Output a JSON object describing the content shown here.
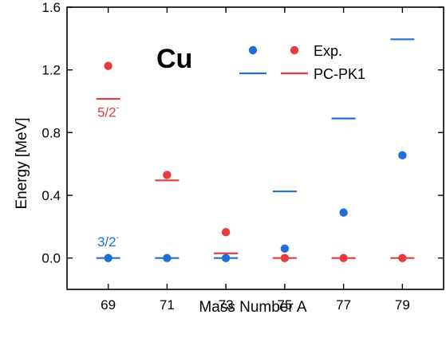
{
  "chart_data": {
    "type": "scatter",
    "annotation_title": "Cu",
    "xlabel": "Mass Number A",
    "ylabel": "Energy [MeV]",
    "xlim": [
      67.6,
      80.4
    ],
    "ylim": [
      -0.2,
      1.6
    ],
    "xticks": [
      69,
      71,
      73,
      75,
      77,
      79
    ],
    "yticks": [
      0.0,
      0.4,
      0.8,
      1.2,
      1.6
    ],
    "ytick_labels": [
      "0.0",
      "0.4",
      "0.8",
      "1.2",
      "1.6"
    ],
    "grid": false,
    "legend_position": "top-right",
    "legend": {
      "exp_label": "Exp.",
      "theory_label": "PC-PK1"
    },
    "colors": {
      "blue": "#1f6fd6",
      "red": "#e8393f",
      "axis": "#000000"
    },
    "series": [
      {
        "state": "3/2-",
        "color": "blue",
        "exp": [
          {
            "x": 69,
            "y": 0.0
          },
          {
            "x": 71,
            "y": 0.0
          },
          {
            "x": 73,
            "y": 0.0
          },
          {
            "x": 75,
            "y": 0.06
          },
          {
            "x": 77,
            "y": 0.29
          },
          {
            "x": 79,
            "y": 0.655
          }
        ],
        "theory": [
          {
            "x": 69,
            "y": 0.0
          },
          {
            "x": 71,
            "y": 0.0
          },
          {
            "x": 73,
            "y": 0.0
          },
          {
            "x": 75,
            "y": 0.425
          },
          {
            "x": 77,
            "y": 0.89
          },
          {
            "x": 79,
            "y": 1.395
          }
        ]
      },
      {
        "state": "5/2-",
        "color": "red",
        "exp": [
          {
            "x": 69,
            "y": 1.225
          },
          {
            "x": 71,
            "y": 0.53
          },
          {
            "x": 73,
            "y": 0.165
          },
          {
            "x": 75,
            "y": 0.0
          },
          {
            "x": 77,
            "y": 0.0
          },
          {
            "x": 79,
            "y": 0.0
          }
        ],
        "theory": [
          {
            "x": 69,
            "y": 1.015
          },
          {
            "x": 71,
            "y": 0.495
          },
          {
            "x": 73,
            "y": 0.03
          },
          {
            "x": 75,
            "y": 0.0
          },
          {
            "x": 77,
            "y": 0.0
          },
          {
            "x": 79,
            "y": 0.0
          }
        ]
      }
    ],
    "state_labels": [
      {
        "base": "5/2",
        "sup": "-",
        "color": "red",
        "x": 69,
        "y": 0.9
      },
      {
        "base": "3/2",
        "sup": "-",
        "color": "blue",
        "x": 69,
        "y": 0.075
      }
    ]
  }
}
